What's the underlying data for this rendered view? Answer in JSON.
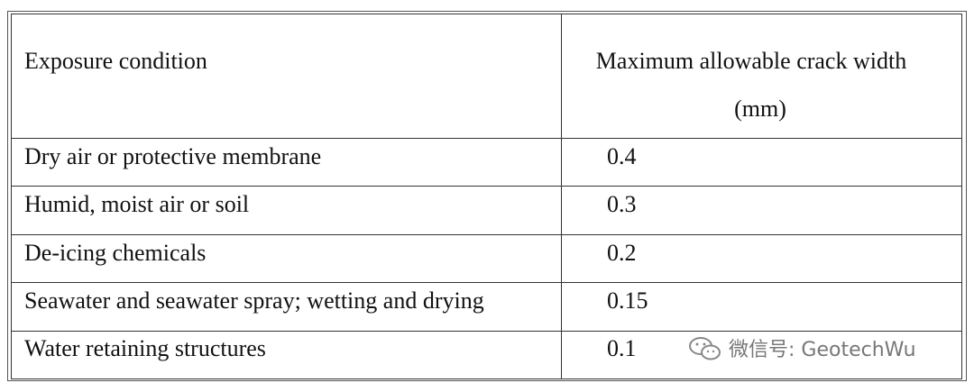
{
  "table": {
    "header": [
      "Exposure condition",
      [
        "Maximum allowable crack width",
        "(mm)"
      ]
    ],
    "rows": [
      [
        "Dry air or protective membrane",
        "0.4"
      ],
      [
        "Humid, moist air or soil",
        "0.3"
      ],
      [
        "De-icing chemicals",
        "0.2"
      ],
      [
        "Seawater and seawater spray; wetting and drying",
        "0.15"
      ],
      [
        "Water retaining structures",
        "0.1"
      ]
    ]
  },
  "watermark": "微信号: GeotechWu"
}
